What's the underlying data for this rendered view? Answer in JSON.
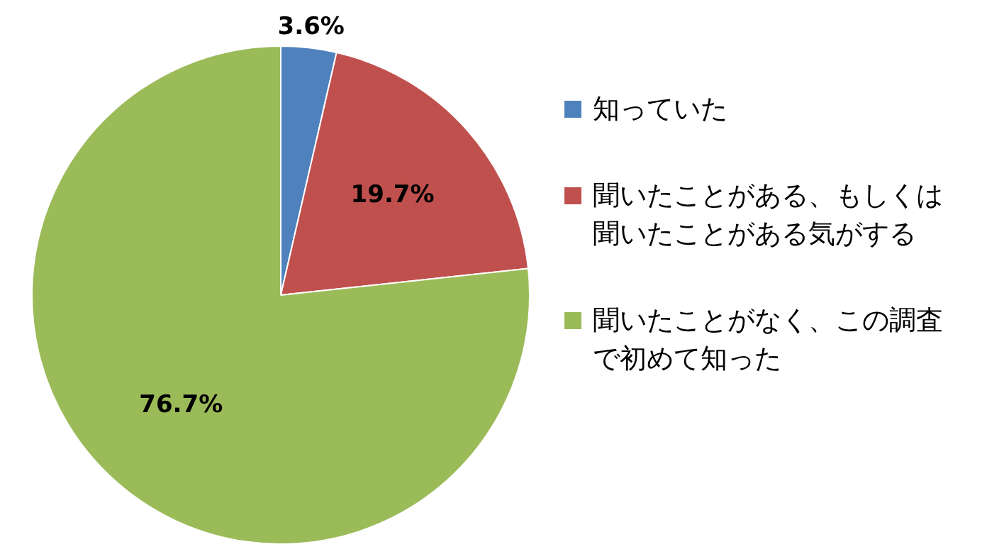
{
  "chart_data": {
    "type": "pie",
    "categories": [
      "知っていた",
      "聞いたことがある、もしくは聞いたことがある気がする",
      "聞いたことがなく、この調査で初めて知った"
    ],
    "values": [
      3.6,
      19.7,
      76.7
    ],
    "colors": [
      "#4f81bd",
      "#c0504d",
      "#9bbb59"
    ],
    "value_labels": [
      "3.6%",
      "19.7%",
      "76.7%"
    ],
    "legend": "right"
  }
}
